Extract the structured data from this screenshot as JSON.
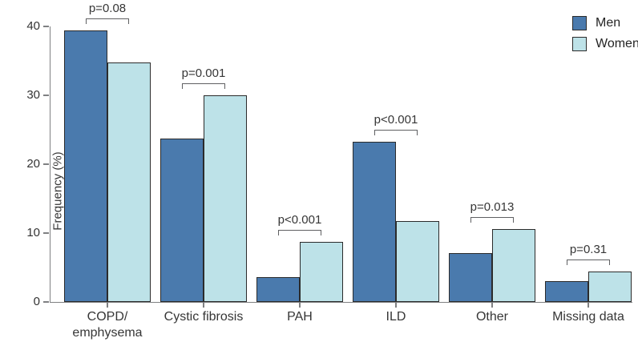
{
  "chart_data": {
    "type": "bar",
    "title": "",
    "categories": [
      "COPD/\nemphysema",
      "Cystic fibrosis",
      "PAH",
      "ILD",
      "Other",
      "Missing data"
    ],
    "series": [
      {
        "name": "Men",
        "color": "#4a7aad",
        "values": [
          39.4,
          23.7,
          3.6,
          23.2,
          7.1,
          3.0
        ]
      },
      {
        "name": "Women",
        "color": "#bde2e8",
        "values": [
          34.8,
          30.0,
          8.7,
          11.8,
          10.6,
          4.4
        ]
      }
    ],
    "p_values": [
      "p=0.08",
      "p=0.001",
      "p<0.001",
      "p<0.001",
      "p=0.013",
      "p=0.31"
    ],
    "xlabel": "",
    "ylabel": "Frequency (%)",
    "ylim": [
      0,
      40
    ],
    "yticks": [
      0,
      10,
      20,
      30,
      40
    ],
    "grid": false,
    "legend_position": "top-right"
  },
  "colors": {
    "men_bar": "#4a7aad",
    "women_bar": "#bde2e8",
    "bar_border": "#2b2b2b",
    "axis": "#7f8082",
    "bracket": "#5f6062",
    "text": "#363636"
  }
}
